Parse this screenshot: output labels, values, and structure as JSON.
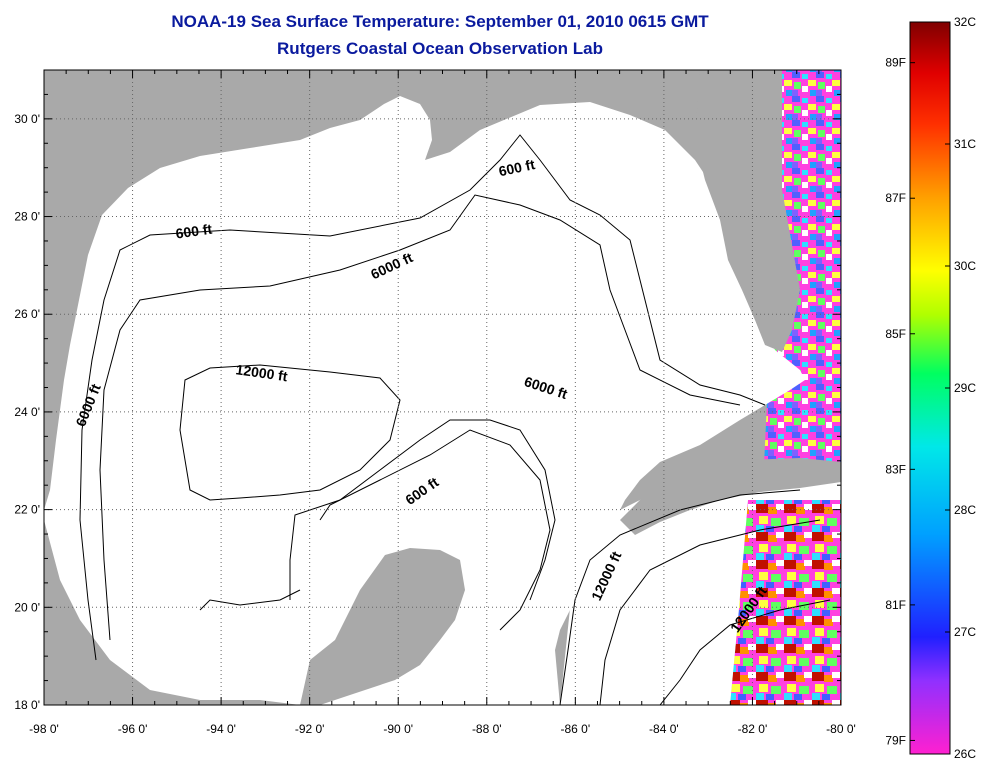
{
  "title_line1": "NOAA-19 Sea Surface Temperature:  September 01, 2010 0615 GMT",
  "title_line2": "Rutgers Coastal Ocean Observation Lab",
  "map": {
    "lon_range": [
      -98,
      -80
    ],
    "lat_range": [
      18,
      31
    ],
    "lon_ticks": [
      "-98 0'",
      "-96 0'",
      "-94 0'",
      "-92 0'",
      "-90 0'",
      "-88 0'",
      "-86 0'",
      "-84 0'",
      "-82 0'",
      "-80 0'"
    ],
    "lat_ticks": [
      "18 0'",
      "20 0'",
      "22 0'",
      "24 0'",
      "26 0'",
      "28 0'",
      "30 0'"
    ],
    "grid": "dotted",
    "land_color": "#a9a9a9",
    "water_color": "#ffffff",
    "contour_labels": [
      {
        "text": "600 ft",
        "lon": -94.6,
        "lat": 27.6,
        "angle": -8
      },
      {
        "text": "600 ft",
        "lon": -87.3,
        "lat": 28.9,
        "angle": -12
      },
      {
        "text": "6000 ft",
        "lon": -90.1,
        "lat": 26.9,
        "angle": -25
      },
      {
        "text": "6000 ft",
        "lon": -96.9,
        "lat": 24.1,
        "angle": -68
      },
      {
        "text": "12000 ft",
        "lon": -93.1,
        "lat": 24.7,
        "angle": 8
      },
      {
        "text": "6000 ft",
        "lon": -86.7,
        "lat": 24.4,
        "angle": 18
      },
      {
        "text": "600 ft",
        "lon": -89.4,
        "lat": 22.3,
        "angle": -35
      },
      {
        "text": "12000 ft",
        "lon": -85.2,
        "lat": 20.6,
        "angle": -65
      },
      {
        "text": "12000 ft",
        "lon": -82.0,
        "lat": 19.9,
        "angle": -55
      }
    ]
  },
  "colorbar": {
    "celsius_labels": [
      "32C",
      "31C",
      "30C",
      "29C",
      "28C",
      "27C",
      "26C"
    ],
    "fahrenheit_labels": [
      "89F",
      "87F",
      "85F",
      "83F",
      "81F",
      "79F"
    ],
    "fahrenheit_values": [
      89,
      87,
      85,
      83,
      81,
      79
    ],
    "range_c": [
      26,
      32
    ],
    "stops": [
      "#ff20d0",
      "#8040ff",
      "#2020ff",
      "#00a0ff",
      "#00e8e8",
      "#00ff60",
      "#b0ff00",
      "#ffff00",
      "#ffa000",
      "#ff3000",
      "#e00000",
      "#800000"
    ]
  }
}
